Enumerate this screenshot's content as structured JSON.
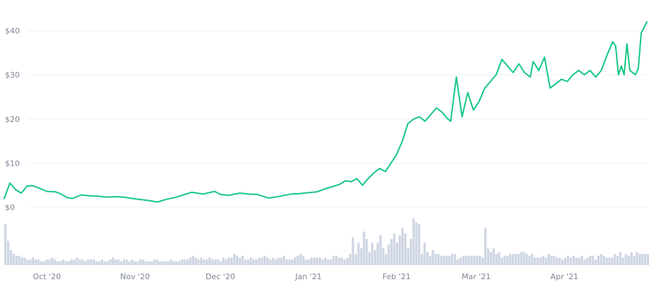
{
  "chart_data": [
    {
      "type": "line",
      "title": "",
      "xlabel": "",
      "ylabel": "",
      "x_range": [
        "2020-09-16",
        "2021-04-30"
      ],
      "ylim": [
        0,
        42
      ],
      "y_ticks": [
        0,
        10,
        20,
        30,
        40
      ],
      "y_tick_labels": [
        "$0",
        "$10",
        "$20",
        "$30",
        "$40"
      ],
      "x_ticks": [
        "2020-10-01",
        "2020-11-01",
        "2020-12-01",
        "2021-01-01",
        "2021-02-01",
        "2021-03-01",
        "2021-04-01"
      ],
      "x_tick_labels": [
        "Oct '20",
        "Nov '20",
        "Dec '20",
        "Jan '21",
        "Feb '21",
        "Mar '21",
        "Apr '21"
      ],
      "grid": true,
      "color": "#16c784",
      "series": [
        {
          "x": [
            "2020-09-16",
            "2020-09-18",
            "2020-09-20",
            "2020-09-22",
            "2020-09-24",
            "2020-09-26",
            "2020-09-28",
            "2020-10-01",
            "2020-10-04",
            "2020-10-06",
            "2020-10-08",
            "2020-10-10",
            "2020-10-13",
            "2020-10-16",
            "2020-10-19",
            "2020-10-22",
            "2020-10-25",
            "2020-10-28",
            "2020-11-01",
            "2020-11-05",
            "2020-11-09",
            "2020-11-12",
            "2020-11-15",
            "2020-11-17",
            "2020-11-19",
            "2020-11-21",
            "2020-11-25",
            "2020-11-29",
            "2020-12-01",
            "2020-12-04",
            "2020-12-06",
            "2020-12-08",
            "2020-12-11",
            "2020-12-14",
            "2020-12-18",
            "2020-12-22",
            "2020-12-26",
            "2020-12-29",
            "2021-01-01",
            "2021-01-04",
            "2021-01-07",
            "2021-01-10",
            "2021-01-12",
            "2021-01-14",
            "2021-01-16",
            "2021-01-18",
            "2021-01-20",
            "2021-01-22",
            "2021-01-24",
            "2021-01-26",
            "2021-01-28",
            "2021-01-30",
            "2021-02-01",
            "2021-02-03",
            "2021-02-05",
            "2021-02-07",
            "2021-02-09",
            "2021-02-11",
            "2021-02-13",
            "2021-02-15",
            "2021-02-17",
            "2021-02-19",
            "2021-02-20",
            "2021-02-22",
            "2021-02-24",
            "2021-02-26",
            "2021-02-28",
            "2021-03-02",
            "2021-03-04",
            "2021-03-06",
            "2021-03-08",
            "2021-03-10",
            "2021-03-12",
            "2021-03-14",
            "2021-03-16",
            "2021-03-18",
            "2021-03-20",
            "2021-03-21",
            "2021-03-23",
            "2021-03-25",
            "2021-03-27",
            "2021-03-29",
            "2021-03-31",
            "2021-04-02",
            "2021-04-04",
            "2021-04-06",
            "2021-04-08",
            "2021-04-10",
            "2021-04-12",
            "2021-04-14",
            "2021-04-16",
            "2021-04-18",
            "2021-04-19",
            "2021-04-20",
            "2021-04-21",
            "2021-04-22",
            "2021-04-23",
            "2021-04-24",
            "2021-04-26",
            "2021-04-27",
            "2021-04-28",
            "2021-04-30"
          ],
          "y": [
            2.0,
            5.5,
            4.0,
            3.2,
            4.8,
            4.9,
            4.4,
            3.6,
            3.5,
            3.0,
            2.2,
            2.0,
            2.8,
            2.6,
            2.5,
            2.3,
            2.4,
            2.3,
            1.9,
            1.6,
            1.2,
            1.8,
            2.2,
            2.6,
            3.0,
            3.4,
            3.0,
            3.6,
            2.9,
            2.7,
            3.0,
            3.2,
            3.0,
            2.9,
            2.1,
            2.5,
            3.0,
            3.1,
            3.3,
            3.5,
            4.2,
            4.8,
            5.2,
            6.0,
            5.8,
            6.5,
            5.0,
            6.5,
            7.8,
            8.8,
            8.1,
            10.0,
            12.0,
            15.0,
            19.0,
            20.0,
            20.5,
            19.5,
            21.0,
            22.5,
            21.5,
            20.0,
            19.5,
            29.5,
            20.5,
            26.0,
            22.0,
            24.0,
            27.0,
            28.5,
            30.0,
            33.5,
            32.0,
            30.5,
            32.5,
            30.5,
            29.5,
            33.0,
            31.0,
            34.0,
            27.0,
            28.0,
            29.0,
            28.5,
            30.0,
            31.0,
            30.0,
            31.0,
            29.5,
            31.0,
            34.5,
            37.5,
            36.5,
            30.0,
            32.0,
            30.0,
            37.0,
            31.0,
            30.0,
            31.5,
            39.5,
            42.0
          ]
        }
      ],
      "volume": {
        "color": "#cfd6e4",
        "x_range": [
          "2020-09-16",
          "2021-04-30"
        ],
        "values": [
          22,
          13,
          8,
          6,
          5,
          5,
          4,
          4,
          3,
          3,
          4,
          3,
          3,
          2,
          2,
          3,
          3,
          4,
          3,
          2,
          2,
          3,
          2,
          2,
          3,
          3,
          4,
          3,
          3,
          2,
          3,
          3,
          3,
          2,
          2,
          3,
          2,
          2,
          3,
          4,
          3,
          3,
          2,
          3,
          3,
          2,
          3,
          2,
          2,
          3,
          3,
          2,
          2,
          2,
          3,
          3,
          2,
          2,
          2,
          2,
          3,
          2,
          2,
          2,
          3,
          3,
          3,
          4,
          5,
          4,
          3,
          4,
          3,
          3,
          4,
          3,
          3,
          3,
          2,
          4,
          3,
          4,
          4,
          6,
          5,
          4,
          5,
          3,
          3,
          4,
          3,
          3,
          4,
          4,
          5,
          4,
          3,
          4,
          3,
          4,
          4,
          5,
          3,
          3,
          3,
          4,
          5,
          6,
          5,
          3,
          3,
          4,
          4,
          4,
          4,
          3,
          4,
          3,
          3,
          5,
          5,
          4,
          4,
          3,
          4,
          6,
          15,
          6,
          12,
          9,
          18,
          14,
          7,
          12,
          8,
          12,
          16,
          9,
          6,
          11,
          14,
          17,
          12,
          16,
          20,
          17,
          9,
          14,
          25,
          23,
          22,
          6,
          12,
          7,
          5,
          8,
          6,
          6,
          5,
          5,
          5,
          5,
          6,
          6,
          3,
          4,
          5,
          5,
          5,
          5,
          5,
          5,
          5,
          4,
          20,
          9,
          7,
          9,
          6,
          7,
          4,
          5,
          5,
          6,
          6,
          6,
          6,
          7,
          7,
          6,
          5,
          6,
          4,
          4,
          4,
          5,
          4,
          6,
          5,
          5,
          4,
          4,
          3,
          4,
          5,
          4,
          5,
          4,
          4,
          5,
          3,
          4,
          5,
          5,
          3,
          5,
          6,
          5,
          4,
          4,
          4,
          6,
          5,
          7,
          4,
          6,
          5,
          7,
          5,
          7,
          6,
          6,
          6,
          6
        ]
      }
    }
  ]
}
